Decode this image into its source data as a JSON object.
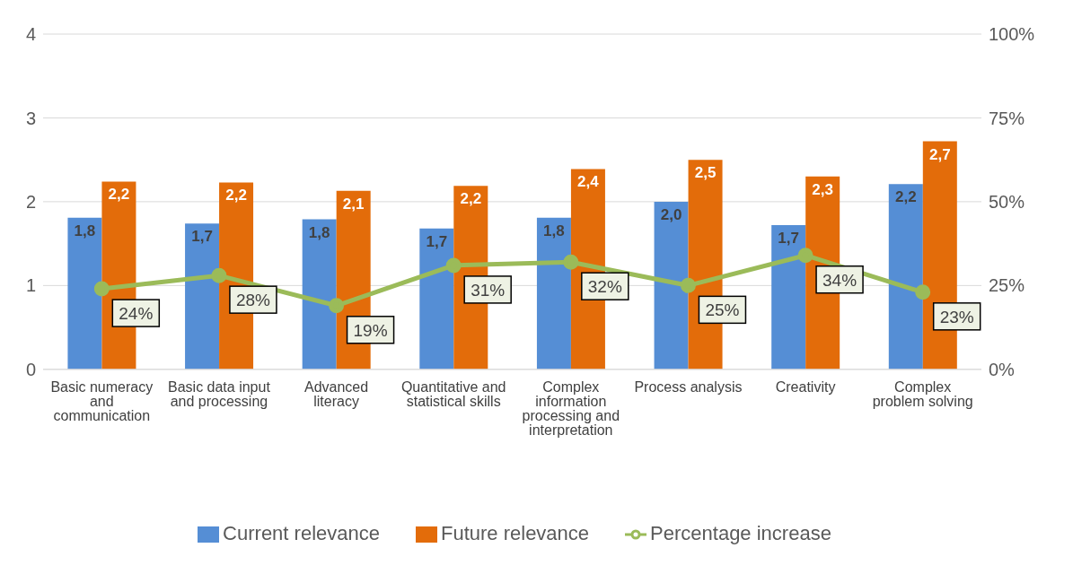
{
  "chart_data": {
    "type": "bar",
    "categories": [
      "Basic numeracy and communication",
      "Basic data input and processing",
      "Advanced literacy",
      "Quantitative and statistical skills",
      "Complex information processing and interpretation",
      "Process analysis",
      "Creativity",
      "Complex problem solving"
    ],
    "series": [
      {
        "name": "Current relevance",
        "color": "#558ed5",
        "values": [
          1.81,
          1.74,
          1.79,
          1.68,
          1.81,
          2.0,
          1.72,
          2.21
        ],
        "value_labels": [
          "1,8",
          "1,7",
          "1,8",
          "1,7",
          "1,8",
          "2,0",
          "1,7",
          "2,2"
        ]
      },
      {
        "name": "Future relevance",
        "color": "#e36c0a",
        "values": [
          2.24,
          2.23,
          2.13,
          2.19,
          2.39,
          2.5,
          2.3,
          2.72
        ],
        "value_labels": [
          "2,2",
          "2,2",
          "2,1",
          "2,2",
          "2,4",
          "2,5",
          "2,3",
          "2,7"
        ]
      },
      {
        "name": "Percentage increase",
        "type": "line",
        "axis": "y2",
        "color": "#9bbb59",
        "values": [
          24,
          28,
          19,
          31,
          32,
          25,
          34,
          23
        ],
        "value_labels": [
          "24%",
          "28%",
          "19%",
          "31%",
          "32%",
          "25%",
          "34%",
          "23%"
        ]
      }
    ],
    "ylim": [
      0,
      4
    ],
    "yticks": [
      0,
      1,
      2,
      3,
      4
    ],
    "y2lim": [
      0,
      100
    ],
    "y2ticks": [
      {
        "value": 0,
        "label": "0%"
      },
      {
        "value": 25,
        "label": "25%"
      },
      {
        "value": 50,
        "label": "50%"
      },
      {
        "value": 75,
        "label": "75%"
      },
      {
        "value": 100,
        "label": "100%"
      }
    ],
    "grid": "y",
    "legend": "bottom",
    "marker": "circle",
    "line_style": "solid"
  }
}
